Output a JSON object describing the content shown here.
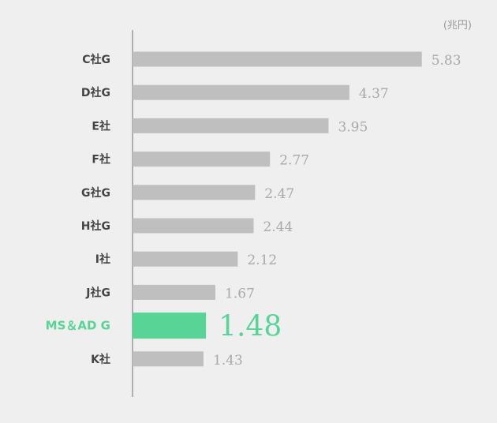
{
  "chart_data": {
    "type": "bar",
    "orientation": "horizontal",
    "unit_label": "(兆円)",
    "categories": [
      "C社G",
      "D社G",
      "E社",
      "F社",
      "G社G",
      "H社G",
      "I社",
      "J社G",
      "MS＆AD G",
      "K社"
    ],
    "values": [
      5.83,
      4.37,
      3.95,
      2.77,
      2.47,
      2.44,
      2.12,
      1.67,
      1.48,
      1.43
    ],
    "value_labels": [
      "5.83",
      "4.37",
      "3.95",
      "2.77",
      "2.47",
      "2.44",
      "2.12",
      "1.67",
      "1.48",
      "1.43"
    ],
    "highlight_category": "MS＆AD G",
    "xlim": [
      0,
      6.0
    ],
    "grid": false,
    "legend": "none",
    "colors": {
      "bar": "#bfbfbf",
      "highlight": "#58d497",
      "axis": "#9a9a9a",
      "category_text": "#444444",
      "value_text": "#a9a9a9",
      "background": "#efefef"
    }
  }
}
